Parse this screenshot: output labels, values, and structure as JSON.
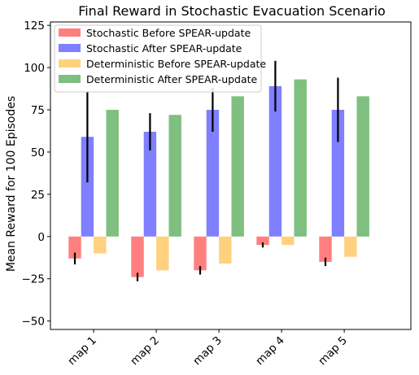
{
  "chart_data": {
    "type": "bar",
    "title": "Final Reward in Stochastic Evacuation Scenario",
    "xlabel": "",
    "ylabel": "Mean Reward for 100 Episodes",
    "categories": [
      "map 1",
      "map 2",
      "map 3",
      "map 4",
      "map 5"
    ],
    "ylim": [
      -55,
      127
    ],
    "yticks": [
      -50,
      -25,
      0,
      25,
      50,
      75,
      100,
      125
    ],
    "ytick_labels": [
      "−50",
      "−25",
      "0",
      "25",
      "50",
      "75",
      "100",
      "125"
    ],
    "grid": false,
    "legend_position": "top-left",
    "series": [
      {
        "name": "Stochastic Before SPEAR-update",
        "color": "#ff7f7f",
        "values": [
          -13,
          -24,
          -20,
          -5,
          -15
        ],
        "errors": [
          3.5,
          2.5,
          2.5,
          1.5,
          2.5
        ]
      },
      {
        "name": "Stochastic After SPEAR-update",
        "color": "#7f7fff",
        "values": [
          59,
          62,
          75,
          89,
          75
        ],
        "errors": [
          27,
          11,
          13,
          15,
          19
        ]
      },
      {
        "name": "Deterministic Before SPEAR-update",
        "color": "#ffd17f",
        "values": [
          -10,
          -20,
          -16,
          -5,
          -12
        ],
        "errors": null
      },
      {
        "name": "Deterministic After SPEAR-update",
        "color": "#7fbf7f",
        "values": [
          75,
          72,
          83,
          93,
          83
        ],
        "errors": null
      }
    ]
  }
}
